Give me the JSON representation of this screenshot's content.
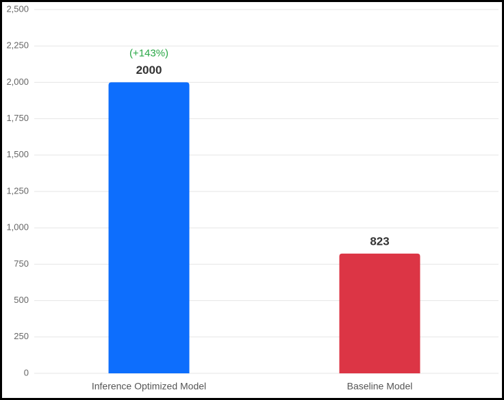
{
  "chart_data": {
    "type": "bar",
    "categories": [
      "Inference Optimized Model",
      "Baseline Model"
    ],
    "values": [
      2000,
      823
    ],
    "colors": [
      "#0d6efd",
      "#dc3545"
    ],
    "annotation": "(+143%)",
    "ylim": [
      0,
      2500
    ],
    "yticks": [
      0,
      250,
      500,
      750,
      {
        "value": 1000,
        "label": "1,000"
      },
      {
        "value": 1250,
        "label": "1,250"
      },
      {
        "value": 1500,
        "label": "1,500"
      },
      {
        "value": 1750,
        "label": "1,750"
      },
      {
        "value": 2000,
        "label": "2,000"
      },
      {
        "value": 2250,
        "label": "2,250"
      },
      {
        "value": 2500,
        "label": "2,500"
      }
    ],
    "grid": true
  }
}
